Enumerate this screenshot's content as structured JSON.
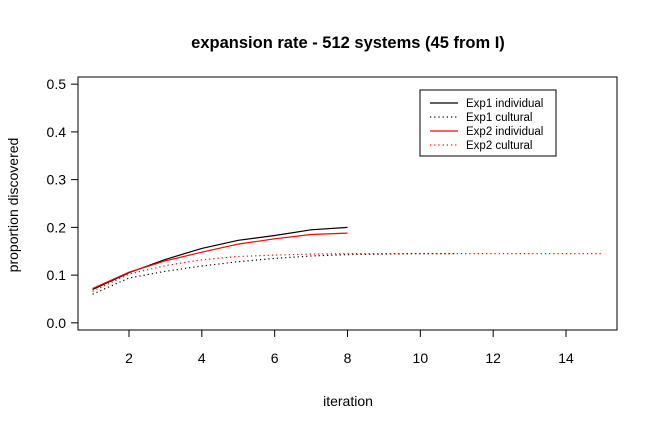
{
  "chart_data": {
    "type": "line",
    "title": "expansion rate - 512 systems (45 from I)",
    "xlabel": "iteration",
    "ylabel": "proportion discovered",
    "xlim": [
      0.6,
      15.4
    ],
    "ylim": [
      -0.015,
      0.515
    ],
    "x_ticks": [
      2,
      4,
      6,
      8,
      10,
      12,
      14
    ],
    "y_ticks": [
      0.0,
      0.1,
      0.2,
      0.3,
      0.4,
      0.5
    ],
    "x_tick_labels": [
      "2",
      "4",
      "6",
      "8",
      "10",
      "12",
      "14"
    ],
    "y_tick_labels": [
      "0.0",
      "0.1",
      "0.2",
      "0.3",
      "0.4",
      "0.5"
    ],
    "legend_position": "top-right",
    "series": [
      {
        "name": "Exp1 individual",
        "color": "#000000",
        "style": "solid",
        "x": [
          1,
          2,
          3,
          4,
          5,
          6,
          7,
          8
        ],
        "values": [
          0.07,
          0.105,
          0.133,
          0.156,
          0.173,
          0.183,
          0.195,
          0.2
        ]
      },
      {
        "name": "Exp1 cultural",
        "color": "#000000",
        "style": "dotted",
        "x": [
          1,
          2,
          3,
          4,
          5,
          6,
          7,
          8,
          9,
          10,
          11
        ],
        "values": [
          0.06,
          0.094,
          0.108,
          0.119,
          0.128,
          0.135,
          0.14,
          0.143,
          0.144,
          0.145,
          0.145
        ]
      },
      {
        "name": "Exp2 individual",
        "color": "#ff0000",
        "style": "solid",
        "x": [
          1,
          2,
          3,
          4,
          5,
          6,
          7,
          8
        ],
        "values": [
          0.072,
          0.106,
          0.13,
          0.148,
          0.165,
          0.176,
          0.185,
          0.188
        ]
      },
      {
        "name": "Exp2 cultural",
        "color": "#ff0000",
        "style": "dotted",
        "x": [
          1,
          2,
          3,
          4,
          5,
          6,
          7,
          8,
          9,
          10,
          11,
          12,
          13,
          14,
          15
        ],
        "values": [
          0.066,
          0.102,
          0.12,
          0.132,
          0.139,
          0.142,
          0.144,
          0.145,
          0.145,
          0.145,
          0.145,
          0.145,
          0.145,
          0.145,
          0.145
        ]
      }
    ]
  }
}
